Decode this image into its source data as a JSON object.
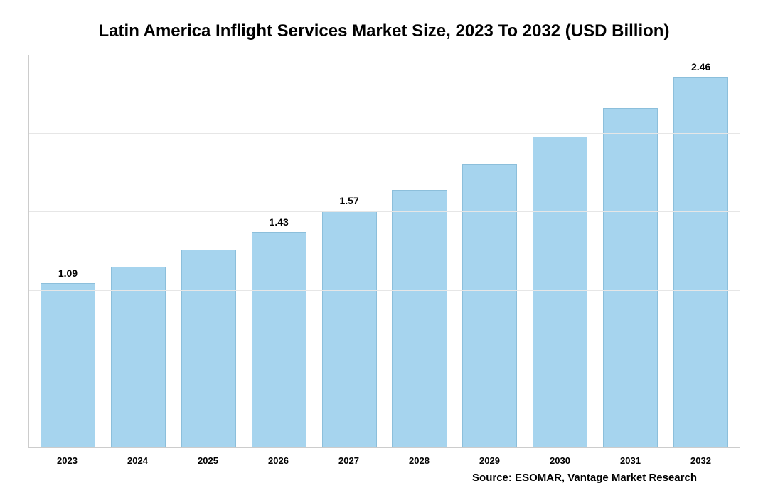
{
  "chart": {
    "type": "bar",
    "title": "Latin America Inflight Services Market Size, 2023 To 2032 (USD Billion)",
    "title_fontsize": 24,
    "categories": [
      "2023",
      "2024",
      "2025",
      "2026",
      "2027",
      "2028",
      "2029",
      "2030",
      "2031",
      "2032"
    ],
    "values": [
      1.09,
      1.2,
      1.31,
      1.43,
      1.57,
      1.71,
      1.88,
      2.06,
      2.25,
      2.46
    ],
    "value_labels": [
      "1.09",
      "",
      "",
      "1.43",
      "1.57",
      "",
      "",
      "",
      "",
      "2.46"
    ],
    "ylim": [
      0,
      2.6
    ],
    "gridlines_y": [
      0.52,
      1.04,
      1.56,
      2.08,
      2.6
    ],
    "bar_color": "#a6d4ee",
    "bar_border_color": "#8cbfdb",
    "grid_color": "#e6e6e6",
    "axis_color": "#cccccc",
    "background_color": "#ffffff",
    "bar_width_pct": 78,
    "value_label_fontsize": 14,
    "xtick_fontsize": 13,
    "source_fontsize": 15
  },
  "source": "Source: ESOMAR, Vantage Market Research"
}
